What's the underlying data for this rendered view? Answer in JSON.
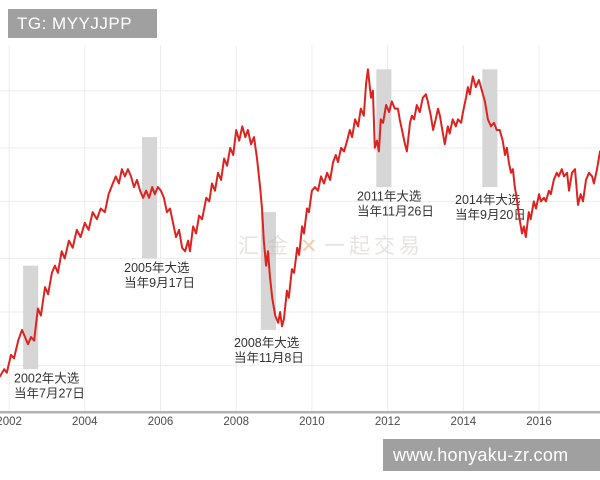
{
  "badges": {
    "top_left": "TG: MYYJJPP",
    "bottom_right": "www.honyaku-zr.com"
  },
  "colors": {
    "line": "#dc2320",
    "band": "#d6d6d6",
    "badge_bg": "#a0a0a0",
    "badge_text": "#ffffff",
    "axis": "#b3b3b3",
    "grid": "#ededed",
    "tick_label": "#4d4d4d",
    "annotation_text": "#333333",
    "watermark_gray": "#b9b2ac",
    "watermark_orange": "#dd9966"
  },
  "watermark": {
    "left_text": "汇金",
    "x_mark": "✕",
    "right_text": "一起交易"
  },
  "chart_data": {
    "type": "line",
    "title": "",
    "xlabel": "",
    "ylabel": "",
    "x_range": [
      2001.76,
      2017.61
    ],
    "y_range": [
      0,
      100
    ],
    "x_ticks": [
      "2002",
      "2004",
      "2006",
      "2008",
      "2010",
      "2012",
      "2014",
      "2016"
    ],
    "grid_h_levels": [
      90,
      74,
      59,
      43,
      28,
      13
    ],
    "annotations": [
      {
        "title": "2002年大选",
        "date": "当年7月27日",
        "year": 2002.57,
        "band_half_width": 0.2,
        "band_top": 41,
        "band_bottom": 12,
        "label_year": 2002.13,
        "label_level": 11
      },
      {
        "title": "2005年大选",
        "date": "当年9月17日",
        "year": 2005.71,
        "band_half_width": 0.2,
        "band_top": 77,
        "band_bottom": 43,
        "label_year": 2005.04,
        "label_level": 42
      },
      {
        "title": "2008年大选",
        "date": "当年11月8日",
        "year": 2008.85,
        "band_half_width": 0.2,
        "band_top": 56,
        "band_bottom": 23,
        "label_year": 2007.94,
        "label_level": 21
      },
      {
        "title": "2011年大选",
        "date": "当年11月26日",
        "year": 2011.9,
        "band_half_width": 0.2,
        "band_top": 96,
        "band_bottom": 63,
        "label_year": 2011.19,
        "label_level": 62
      },
      {
        "title": "2014年大选",
        "date": "当年9月20日",
        "year": 2014.7,
        "band_half_width": 0.2,
        "band_top": 96,
        "band_bottom": 63,
        "label_year": 2013.78,
        "label_level": 61
      }
    ],
    "series": [
      {
        "name": "price",
        "color": "#dc2320",
        "points": [
          [
            2001.76,
            10
          ],
          [
            2001.87,
            12
          ],
          [
            2001.94,
            11
          ],
          [
            2002.05,
            16
          ],
          [
            2002.13,
            15
          ],
          [
            2002.24,
            20
          ],
          [
            2002.34,
            23
          ],
          [
            2002.42,
            21
          ],
          [
            2002.5,
            19
          ],
          [
            2002.58,
            21
          ],
          [
            2002.66,
            20
          ],
          [
            2002.76,
            29
          ],
          [
            2002.84,
            27
          ],
          [
            2002.95,
            35
          ],
          [
            2003.03,
            33
          ],
          [
            2003.13,
            39
          ],
          [
            2003.21,
            41
          ],
          [
            2003.29,
            39
          ],
          [
            2003.39,
            45
          ],
          [
            2003.47,
            43
          ],
          [
            2003.58,
            48
          ],
          [
            2003.68,
            46
          ],
          [
            2003.79,
            51
          ],
          [
            2003.89,
            49
          ],
          [
            2004,
            53
          ],
          [
            2004.1,
            51
          ],
          [
            2004.21,
            56
          ],
          [
            2004.32,
            54
          ],
          [
            2004.42,
            57
          ],
          [
            2004.53,
            56
          ],
          [
            2004.63,
            61
          ],
          [
            2004.74,
            64
          ],
          [
            2004.82,
            66
          ],
          [
            2004.9,
            64
          ],
          [
            2004.98,
            68
          ],
          [
            2005.06,
            66
          ],
          [
            2005.14,
            68
          ],
          [
            2005.22,
            66
          ],
          [
            2005.3,
            63
          ],
          [
            2005.38,
            65
          ],
          [
            2005.46,
            62
          ],
          [
            2005.54,
            60
          ],
          [
            2005.62,
            62
          ],
          [
            2005.7,
            60
          ],
          [
            2005.78,
            63
          ],
          [
            2005.85,
            61
          ],
          [
            2005.93,
            63
          ],
          [
            2006.01,
            62
          ],
          [
            2006.09,
            60
          ],
          [
            2006.17,
            56
          ],
          [
            2006.25,
            57
          ],
          [
            2006.33,
            53
          ],
          [
            2006.41,
            49
          ],
          [
            2006.49,
            51
          ],
          [
            2006.57,
            46
          ],
          [
            2006.65,
            45
          ],
          [
            2006.73,
            48
          ],
          [
            2006.78,
            45
          ],
          [
            2006.86,
            52
          ],
          [
            2006.94,
            50
          ],
          [
            2007.02,
            55
          ],
          [
            2007.1,
            54
          ],
          [
            2007.21,
            60
          ],
          [
            2007.29,
            59
          ],
          [
            2007.36,
            64
          ],
          [
            2007.44,
            62
          ],
          [
            2007.52,
            67
          ],
          [
            2007.6,
            65
          ],
          [
            2007.68,
            71
          ],
          [
            2007.76,
            69
          ],
          [
            2007.84,
            74
          ],
          [
            2007.92,
            72
          ],
          [
            2008,
            79
          ],
          [
            2008.08,
            76
          ],
          [
            2008.16,
            80
          ],
          [
            2008.24,
            77
          ],
          [
            2008.31,
            79
          ],
          [
            2008.39,
            75
          ],
          [
            2008.47,
            77
          ],
          [
            2008.55,
            71
          ],
          [
            2008.63,
            63
          ],
          [
            2008.68,
            57
          ],
          [
            2008.73,
            48
          ],
          [
            2008.79,
            41
          ],
          [
            2008.84,
            45
          ],
          [
            2008.89,
            38
          ],
          [
            2008.95,
            32
          ],
          [
            2009.03,
            27
          ],
          [
            2009.11,
            25
          ],
          [
            2009.16,
            28
          ],
          [
            2009.21,
            24
          ],
          [
            2009.26,
            26
          ],
          [
            2009.34,
            34
          ],
          [
            2009.39,
            32
          ],
          [
            2009.47,
            40
          ],
          [
            2009.53,
            39
          ],
          [
            2009.61,
            46
          ],
          [
            2009.66,
            44
          ],
          [
            2009.74,
            52
          ],
          [
            2009.79,
            50
          ],
          [
            2009.87,
            57
          ],
          [
            2009.92,
            56
          ],
          [
            2010,
            62
          ],
          [
            2010.08,
            63
          ],
          [
            2010.16,
            62
          ],
          [
            2010.24,
            66
          ],
          [
            2010.32,
            64
          ],
          [
            2010.4,
            67
          ],
          [
            2010.48,
            65
          ],
          [
            2010.56,
            70
          ],
          [
            2010.63,
            72
          ],
          [
            2010.69,
            70
          ],
          [
            2010.77,
            74
          ],
          [
            2010.85,
            73
          ],
          [
            2010.93,
            76
          ],
          [
            2011,
            79
          ],
          [
            2011.06,
            77
          ],
          [
            2011.14,
            82
          ],
          [
            2011.22,
            80
          ],
          [
            2011.29,
            85
          ],
          [
            2011.37,
            83
          ],
          [
            2011.43,
            92
          ],
          [
            2011.48,
            96
          ],
          [
            2011.56,
            88
          ],
          [
            2011.61,
            90
          ],
          [
            2011.66,
            74
          ],
          [
            2011.72,
            76
          ],
          [
            2011.77,
            73
          ],
          [
            2011.82,
            82
          ],
          [
            2011.88,
            81
          ],
          [
            2011.96,
            86
          ],
          [
            2012.04,
            84
          ],
          [
            2012.11,
            87
          ],
          [
            2012.19,
            85
          ],
          [
            2012.27,
            85
          ],
          [
            2012.32,
            82
          ],
          [
            2012.38,
            79
          ],
          [
            2012.46,
            75
          ],
          [
            2012.51,
            73
          ],
          [
            2012.59,
            81
          ],
          [
            2012.64,
            83
          ],
          [
            2012.7,
            82
          ],
          [
            2012.77,
            86
          ],
          [
            2012.85,
            84
          ],
          [
            2012.93,
            88
          ],
          [
            2013.01,
            89
          ],
          [
            2013.06,
            87
          ],
          [
            2013.14,
            83
          ],
          [
            2013.2,
            79
          ],
          [
            2013.27,
            82
          ],
          [
            2013.33,
            85
          ],
          [
            2013.38,
            83
          ],
          [
            2013.46,
            78
          ],
          [
            2013.51,
            75
          ],
          [
            2013.59,
            80
          ],
          [
            2013.64,
            78
          ],
          [
            2013.72,
            82
          ],
          [
            2013.8,
            80
          ],
          [
            2013.86,
            82
          ],
          [
            2013.94,
            81
          ],
          [
            2013.99,
            84
          ],
          [
            2014.07,
            88
          ],
          [
            2014.12,
            91
          ],
          [
            2014.17,
            89
          ],
          [
            2014.25,
            94
          ],
          [
            2014.33,
            91
          ],
          [
            2014.41,
            93
          ],
          [
            2014.49,
            90
          ],
          [
            2014.57,
            87
          ],
          [
            2014.65,
            82
          ],
          [
            2014.73,
            80
          ],
          [
            2014.81,
            81
          ],
          [
            2014.88,
            79
          ],
          [
            2014.96,
            79
          ],
          [
            2015.04,
            76
          ],
          [
            2015.1,
            72
          ],
          [
            2015.15,
            74
          ],
          [
            2015.2,
            70
          ],
          [
            2015.26,
            67
          ],
          [
            2015.31,
            68
          ],
          [
            2015.36,
            63
          ],
          [
            2015.41,
            60
          ],
          [
            2015.47,
            55
          ],
          [
            2015.55,
            50
          ],
          [
            2015.6,
            52
          ],
          [
            2015.65,
            49
          ],
          [
            2015.73,
            56
          ],
          [
            2015.78,
            54
          ],
          [
            2015.86,
            59
          ],
          [
            2015.92,
            57
          ],
          [
            2016,
            61
          ],
          [
            2016.05,
            59
          ],
          [
            2016.13,
            60
          ],
          [
            2016.18,
            59
          ],
          [
            2016.26,
            62
          ],
          [
            2016.31,
            61
          ],
          [
            2016.39,
            65
          ],
          [
            2016.47,
            67
          ],
          [
            2016.52,
            66
          ],
          [
            2016.6,
            68
          ],
          [
            2016.66,
            66
          ],
          [
            2016.74,
            67
          ],
          [
            2016.79,
            62
          ],
          [
            2016.87,
            67
          ],
          [
            2016.95,
            68
          ],
          [
            2017.03,
            58
          ],
          [
            2017.1,
            61
          ],
          [
            2017.16,
            59
          ],
          [
            2017.24,
            65
          ],
          [
            2017.32,
            67
          ],
          [
            2017.4,
            66
          ],
          [
            2017.45,
            64
          ],
          [
            2017.53,
            68
          ],
          [
            2017.61,
            73
          ]
        ]
      }
    ]
  }
}
